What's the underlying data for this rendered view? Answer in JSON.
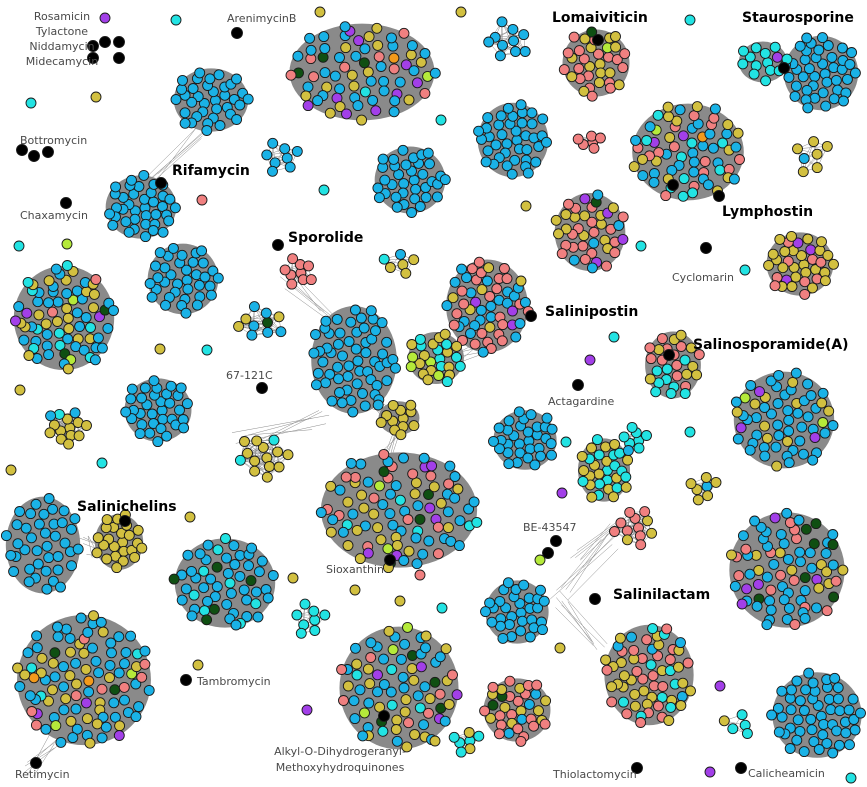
{
  "figure": {
    "node_colors": {
      "blue": "#1ab2e6",
      "yellow": "#d2c040",
      "salmon": "#f08080",
      "cyan": "#22e3e3",
      "purple": "#a23fe8",
      "darkgreen": "#0f4f12",
      "lime": "#b5ea3a",
      "orange": "#f39a1b",
      "black": "#000000"
    },
    "edge_color": "#8c8c8c",
    "labels": [
      {
        "id": "rosamicin",
        "text": "Rosamicin",
        "size": "small"
      },
      {
        "id": "tylactone",
        "text": "Tylactone",
        "size": "small"
      },
      {
        "id": "niddamycin",
        "text": "Niddamycin",
        "size": "small"
      },
      {
        "id": "midecamycin",
        "text": "Midecamycin",
        "size": "small"
      },
      {
        "id": "arenimycinb",
        "text": "ArenimycinB",
        "size": "small"
      },
      {
        "id": "lomaiviticin",
        "text": "Lomaiviticin",
        "size": "large"
      },
      {
        "id": "staurosporine",
        "text": "Staurosporine",
        "size": "large"
      },
      {
        "id": "bottromycin",
        "text": "Bottromycin",
        "size": "small"
      },
      {
        "id": "rifamycin",
        "text": "Rifamycin",
        "size": "large"
      },
      {
        "id": "chaxamycin",
        "text": "Chaxamycin",
        "size": "small"
      },
      {
        "id": "lymphostin",
        "text": "Lymphostin",
        "size": "large"
      },
      {
        "id": "sporolide",
        "text": "Sporolide",
        "size": "large"
      },
      {
        "id": "cyclomarin",
        "text": "Cyclomarin",
        "size": "small"
      },
      {
        "id": "salinipostin",
        "text": "Salinipostin",
        "size": "large"
      },
      {
        "id": "salinosporamide",
        "text": "Salinosporamide(A)",
        "size": "large"
      },
      {
        "id": "67-121c",
        "text": "67-121C",
        "size": "small"
      },
      {
        "id": "actagardine",
        "text": "Actagardine",
        "size": "small"
      },
      {
        "id": "salinichelins",
        "text": "Salinichelins",
        "size": "large"
      },
      {
        "id": "be-43547",
        "text": "BE-43547",
        "size": "small"
      },
      {
        "id": "sioxanthin",
        "text": "Sioxanthin",
        "size": "small"
      },
      {
        "id": "salinilactam",
        "text": "Salinilactam",
        "size": "large"
      },
      {
        "id": "tambromycin",
        "text": "Tambromycin",
        "size": "small"
      },
      {
        "id": "alkyl-1",
        "text": "Alkyl-O-Dihydrogeranyl-",
        "size": "small"
      },
      {
        "id": "alkyl-2",
        "text": "Methoxyhydroquinones",
        "size": "small"
      },
      {
        "id": "retimycin",
        "text": "Retimycin",
        "size": "small"
      },
      {
        "id": "thiolactomycin",
        "text": "Thiolactomycin",
        "size": "small"
      },
      {
        "id": "calicheamicin",
        "text": "Calicheamicin",
        "size": "small"
      }
    ]
  }
}
